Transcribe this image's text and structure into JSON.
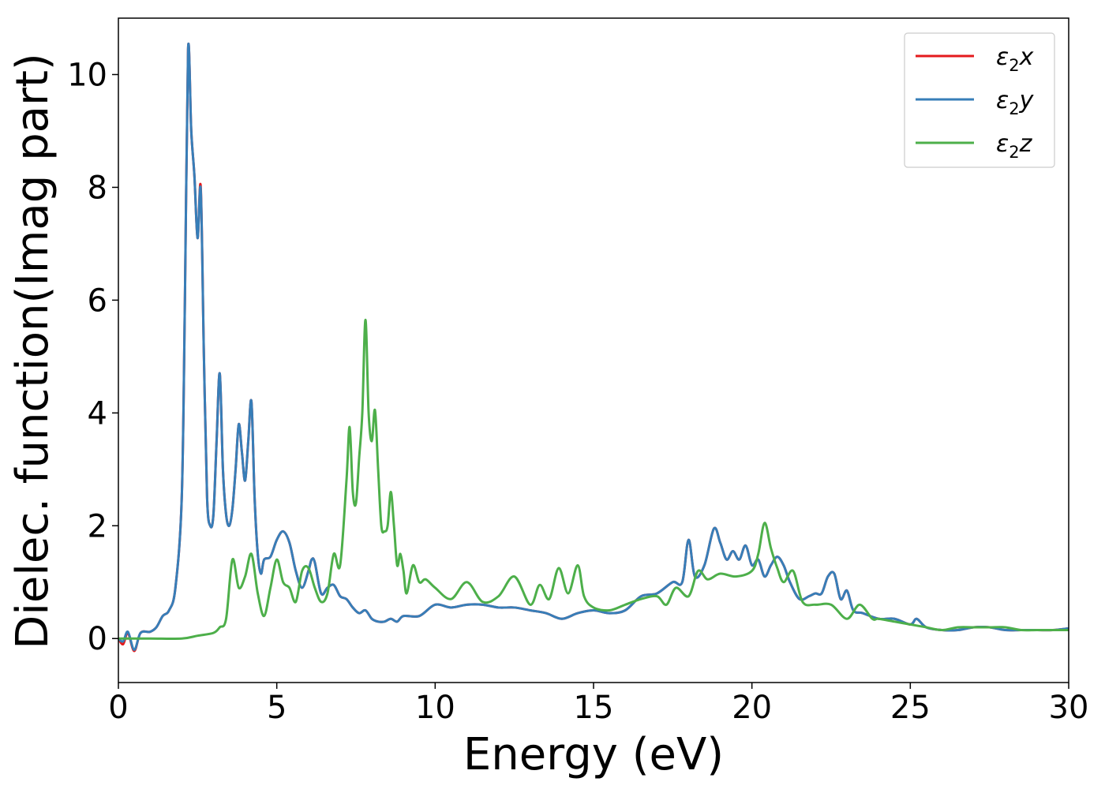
{
  "chart_data": {
    "type": "line",
    "title": "",
    "xlabel": "Energy (eV)",
    "ylabel": "Dielec. function(Imag part)",
    "xlim": [
      0,
      30
    ],
    "ylim": [
      -0.78,
      11.0
    ],
    "xticks": [
      "0",
      "5",
      "10",
      "15",
      "20",
      "25",
      "30"
    ],
    "yticks": [
      "0",
      "2",
      "4",
      "6",
      "8",
      "10"
    ],
    "grid": false,
    "legend_position": "top-right",
    "series": [
      {
        "name": "ε2x",
        "legend_base": "ε",
        "legend_sub": "2",
        "legend_suffix": "x",
        "color": "#e41a1c",
        "x": [
          0,
          0.15,
          0.3,
          0.5,
          0.7,
          1.0,
          1.2,
          1.4,
          1.6,
          1.8,
          2.0,
          2.1,
          2.2,
          2.3,
          2.4,
          2.5,
          2.6,
          2.7,
          2.8,
          2.9,
          3.0,
          3.1,
          3.2,
          3.3,
          3.4,
          3.5,
          3.6,
          3.7,
          3.8,
          3.9,
          4.0,
          4.1,
          4.2,
          4.3,
          4.4,
          4.5,
          4.6,
          4.8,
          5.0,
          5.2,
          5.4,
          5.6,
          5.8,
          6.0,
          6.1,
          6.2,
          6.4,
          6.6,
          6.8,
          7.0,
          7.2,
          7.4,
          7.6,
          7.8,
          8.0,
          8.2,
          8.4,
          8.6,
          8.8,
          9.0,
          9.5,
          10.0,
          10.5,
          11.0,
          11.5,
          12.0,
          12.5,
          13.0,
          13.5,
          14.0,
          14.5,
          15.0,
          15.5,
          16.0,
          16.5,
          17.0,
          17.5,
          17.8,
          18.0,
          18.2,
          18.5,
          18.8,
          19.0,
          19.2,
          19.4,
          19.6,
          19.8,
          20.0,
          20.2,
          20.4,
          20.6,
          20.8,
          21.0,
          21.2,
          21.5,
          21.8,
          22.0,
          22.2,
          22.4,
          22.6,
          22.8,
          23.0,
          23.2,
          23.5,
          24.0,
          24.5,
          25.0,
          25.2,
          25.5,
          26.0,
          26.5,
          27.0,
          27.5,
          28.0,
          28.5,
          29.0,
          29.5,
          30.0
        ],
        "values": [
          0,
          -0.1,
          0.1,
          -0.22,
          0.1,
          0.12,
          0.2,
          0.4,
          0.5,
          0.9,
          2.5,
          6.0,
          10.45,
          9.0,
          8.2,
          7.1,
          8.0,
          5.0,
          2.5,
          2.0,
          2.2,
          3.5,
          4.7,
          3.0,
          2.2,
          2.0,
          2.3,
          3.0,
          3.8,
          3.3,
          2.8,
          3.5,
          4.2,
          2.5,
          1.5,
          1.15,
          1.4,
          1.45,
          1.75,
          1.9,
          1.7,
          1.2,
          0.9,
          1.2,
          1.4,
          1.35,
          0.8,
          0.9,
          0.95,
          0.75,
          0.7,
          0.55,
          0.45,
          0.5,
          0.35,
          0.3,
          0.3,
          0.35,
          0.3,
          0.4,
          0.4,
          0.6,
          0.55,
          0.6,
          0.6,
          0.55,
          0.55,
          0.5,
          0.45,
          0.35,
          0.45,
          0.5,
          0.45,
          0.5,
          0.75,
          0.8,
          1.0,
          1.0,
          1.75,
          1.1,
          1.3,
          1.95,
          1.7,
          1.4,
          1.55,
          1.4,
          1.65,
          1.3,
          1.4,
          1.1,
          1.3,
          1.45,
          1.3,
          1.0,
          0.7,
          0.75,
          0.8,
          0.8,
          1.1,
          1.15,
          0.7,
          0.85,
          0.5,
          0.45,
          0.35,
          0.35,
          0.25,
          0.35,
          0.2,
          0.15,
          0.15,
          0.2,
          0.2,
          0.15,
          0.15,
          0.15,
          0.15,
          0.18
        ]
      },
      {
        "name": "ε2y",
        "legend_base": "ε",
        "legend_sub": "2",
        "legend_suffix": "y",
        "color": "#377eb8",
        "x": [
          0,
          0.15,
          0.3,
          0.5,
          0.7,
          1.0,
          1.2,
          1.4,
          1.6,
          1.8,
          2.0,
          2.1,
          2.2,
          2.3,
          2.4,
          2.5,
          2.6,
          2.7,
          2.8,
          2.9,
          3.0,
          3.1,
          3.2,
          3.3,
          3.4,
          3.5,
          3.6,
          3.7,
          3.8,
          3.9,
          4.0,
          4.1,
          4.2,
          4.3,
          4.4,
          4.5,
          4.6,
          4.8,
          5.0,
          5.2,
          5.4,
          5.6,
          5.8,
          6.0,
          6.1,
          6.2,
          6.4,
          6.6,
          6.8,
          7.0,
          7.2,
          7.4,
          7.6,
          7.8,
          8.0,
          8.2,
          8.4,
          8.6,
          8.8,
          9.0,
          9.5,
          10.0,
          10.5,
          11.0,
          11.5,
          12.0,
          12.5,
          13.0,
          13.5,
          14.0,
          14.5,
          15.0,
          15.5,
          16.0,
          16.5,
          17.0,
          17.5,
          17.8,
          18.0,
          18.2,
          18.5,
          18.8,
          19.0,
          19.2,
          19.4,
          19.6,
          19.8,
          20.0,
          20.2,
          20.4,
          20.6,
          20.8,
          21.0,
          21.2,
          21.5,
          21.8,
          22.0,
          22.2,
          22.4,
          22.6,
          22.8,
          23.0,
          23.2,
          23.5,
          24.0,
          24.5,
          25.0,
          25.2,
          25.5,
          26.0,
          26.5,
          27.0,
          27.5,
          28.0,
          28.5,
          29.0,
          29.5,
          30.0
        ],
        "values": [
          0,
          -0.05,
          0.12,
          -0.2,
          0.1,
          0.12,
          0.2,
          0.4,
          0.5,
          0.9,
          2.5,
          6.0,
          10.45,
          9.0,
          8.2,
          7.1,
          7.95,
          5.0,
          2.5,
          2.0,
          2.2,
          3.5,
          4.7,
          3.0,
          2.2,
          2.0,
          2.3,
          3.0,
          3.8,
          3.3,
          2.8,
          3.5,
          4.2,
          2.5,
          1.5,
          1.15,
          1.4,
          1.45,
          1.75,
          1.9,
          1.7,
          1.2,
          0.9,
          1.2,
          1.4,
          1.35,
          0.8,
          0.9,
          0.95,
          0.75,
          0.7,
          0.55,
          0.45,
          0.5,
          0.35,
          0.3,
          0.3,
          0.35,
          0.3,
          0.4,
          0.4,
          0.6,
          0.55,
          0.6,
          0.6,
          0.55,
          0.55,
          0.5,
          0.45,
          0.35,
          0.45,
          0.5,
          0.45,
          0.5,
          0.75,
          0.8,
          1.0,
          1.0,
          1.75,
          1.1,
          1.3,
          1.95,
          1.7,
          1.4,
          1.55,
          1.4,
          1.65,
          1.3,
          1.4,
          1.1,
          1.3,
          1.45,
          1.3,
          1.0,
          0.7,
          0.75,
          0.8,
          0.8,
          1.1,
          1.15,
          0.7,
          0.85,
          0.5,
          0.45,
          0.35,
          0.35,
          0.25,
          0.35,
          0.2,
          0.15,
          0.15,
          0.2,
          0.2,
          0.15,
          0.15,
          0.15,
          0.15,
          0.18
        ]
      },
      {
        "name": "ε2z",
        "legend_base": "ε",
        "legend_sub": "2",
        "legend_suffix": "z",
        "color": "#4daf4a",
        "x": [
          0,
          1.0,
          2.0,
          2.5,
          3.0,
          3.2,
          3.4,
          3.6,
          3.8,
          4.0,
          4.2,
          4.4,
          4.6,
          4.8,
          5.0,
          5.2,
          5.4,
          5.6,
          5.8,
          6.0,
          6.2,
          6.4,
          6.6,
          6.8,
          7.0,
          7.2,
          7.3,
          7.4,
          7.5,
          7.6,
          7.7,
          7.8,
          7.9,
          8.0,
          8.1,
          8.2,
          8.3,
          8.4,
          8.5,
          8.6,
          8.7,
          8.8,
          8.9,
          9.0,
          9.1,
          9.3,
          9.5,
          9.7,
          10.0,
          10.5,
          11.0,
          11.5,
          12.0,
          12.5,
          13.0,
          13.3,
          13.6,
          13.9,
          14.2,
          14.5,
          14.7,
          15.0,
          15.5,
          16.0,
          16.5,
          17.0,
          17.3,
          17.6,
          18.0,
          18.3,
          18.6,
          19.0,
          19.5,
          20.0,
          20.2,
          20.4,
          20.6,
          20.8,
          21.0,
          21.3,
          21.6,
          22.0,
          22.5,
          23.0,
          23.4,
          23.8,
          24.0,
          24.5,
          25.0,
          25.5,
          26.0,
          26.5,
          27.0,
          27.5,
          28.0,
          28.5,
          29.0,
          29.5,
          30.0
        ],
        "values": [
          0,
          0,
          0,
          0.05,
          0.1,
          0.2,
          0.35,
          1.4,
          0.9,
          1.1,
          1.5,
          0.8,
          0.4,
          0.9,
          1.4,
          1.0,
          0.9,
          0.65,
          1.2,
          1.25,
          0.9,
          0.65,
          0.8,
          1.5,
          1.3,
          2.8,
          3.75,
          2.6,
          2.4,
          3.2,
          4.0,
          5.65,
          4.0,
          3.5,
          4.05,
          3.0,
          2.0,
          1.9,
          2.0,
          2.6,
          2.0,
          1.3,
          1.5,
          1.2,
          0.8,
          1.3,
          1.0,
          1.05,
          0.9,
          0.7,
          1.0,
          0.65,
          0.75,
          1.1,
          0.6,
          0.95,
          0.7,
          1.25,
          0.8,
          1.3,
          0.75,
          0.55,
          0.5,
          0.6,
          0.7,
          0.75,
          0.6,
          0.9,
          0.75,
          1.2,
          1.05,
          1.15,
          1.1,
          1.2,
          1.5,
          2.05,
          1.6,
          1.25,
          1.0,
          1.2,
          0.65,
          0.6,
          0.6,
          0.35,
          0.6,
          0.35,
          0.35,
          0.3,
          0.25,
          0.2,
          0.15,
          0.2,
          0.2,
          0.2,
          0.2,
          0.15,
          0.15,
          0.15,
          0.15
        ]
      }
    ]
  }
}
